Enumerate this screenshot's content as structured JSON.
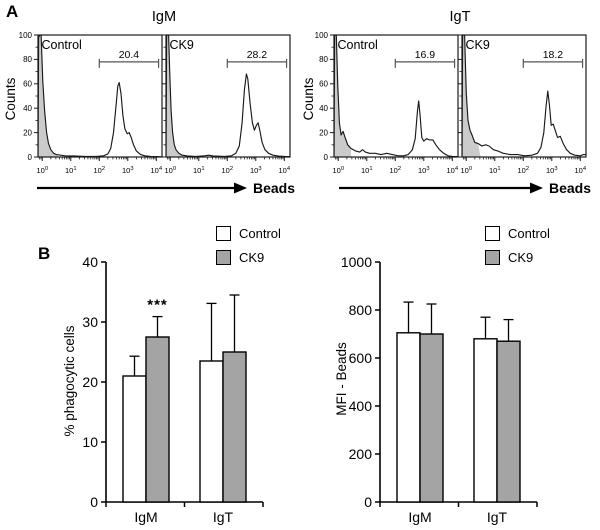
{
  "figure": {
    "panel_a_label": "A",
    "panel_b_label": "B"
  },
  "panel_a": {
    "group_titles": [
      "IgM",
      "IgT"
    ],
    "y_axis_label": "Counts",
    "x_arrow_label": "Beads"
  },
  "colors": {
    "control_fill": "#FFFFFF",
    "ck9_fill": "#A4A4A4",
    "histogram_shade": "#CBCBCB",
    "line": "#1a1a1a",
    "gate_line": "#555555"
  },
  "chart_data": [
    {
      "type": "area",
      "subtype": "flow-cytometry-histogram",
      "panel": "A",
      "group": "IgM",
      "sample": "Control",
      "xlabel": "Beads",
      "ylabel": "Counts",
      "x_scale": "log10",
      "x_range_log10": [
        -0.15,
        4.2
      ],
      "ylim": [
        0,
        100
      ],
      "y_ticks": [
        0,
        20,
        40,
        60,
        80,
        100
      ],
      "x_tick_exponents": [
        0,
        1,
        2,
        3,
        4
      ],
      "gate": {
        "label": "20.4",
        "from_log10": 2.0,
        "to_log10": 4.08,
        "counts_level": 78
      },
      "shaded_region_to_log10": 0.6,
      "points_log10x_counts": [
        [
          -0.15,
          0
        ],
        [
          -0.13,
          98
        ],
        [
          -0.08,
          100
        ],
        [
          -0.04,
          100
        ],
        [
          0.02,
          62
        ],
        [
          0.08,
          38
        ],
        [
          0.15,
          20
        ],
        [
          0.22,
          11
        ],
        [
          0.3,
          6
        ],
        [
          0.4,
          3
        ],
        [
          0.5,
          2
        ],
        [
          0.65,
          1.5
        ],
        [
          0.8,
          1
        ],
        [
          1.1,
          0.8
        ],
        [
          1.5,
          0.5
        ],
        [
          1.9,
          0.5
        ],
        [
          2.15,
          1
        ],
        [
          2.3,
          2.5
        ],
        [
          2.4,
          7
        ],
        [
          2.5,
          20
        ],
        [
          2.58,
          40
        ],
        [
          2.65,
          58
        ],
        [
          2.7,
          61
        ],
        [
          2.76,
          52
        ],
        [
          2.83,
          34
        ],
        [
          2.9,
          23
        ],
        [
          2.98,
          19
        ],
        [
          3.05,
          20
        ],
        [
          3.12,
          16
        ],
        [
          3.2,
          10
        ],
        [
          3.3,
          5
        ],
        [
          3.45,
          2
        ],
        [
          3.6,
          1
        ],
        [
          3.8,
          0.5
        ],
        [
          4.0,
          0.3
        ],
        [
          4.2,
          0.2
        ]
      ]
    },
    {
      "type": "area",
      "subtype": "flow-cytometry-histogram",
      "panel": "A",
      "group": "IgM",
      "sample": "CK9",
      "xlabel": "Beads",
      "ylabel": "Counts",
      "x_scale": "log10",
      "x_range_log10": [
        -0.15,
        4.2
      ],
      "ylim": [
        0,
        100
      ],
      "y_ticks": [
        0,
        20,
        40,
        60,
        80,
        100
      ],
      "x_tick_exponents": [
        0,
        1,
        2,
        3,
        4
      ],
      "gate": {
        "label": "28.2",
        "from_log10": 2.0,
        "to_log10": 4.08,
        "counts_level": 78
      },
      "shaded_region_to_log10": 0.45,
      "points_log10x_counts": [
        [
          -0.15,
          0
        ],
        [
          -0.13,
          100
        ],
        [
          -0.06,
          100
        ],
        [
          -0.02,
          70
        ],
        [
          0.03,
          38
        ],
        [
          0.08,
          20
        ],
        [
          0.14,
          10
        ],
        [
          0.2,
          6
        ],
        [
          0.3,
          3
        ],
        [
          0.42,
          1.5
        ],
        [
          0.6,
          0.8
        ],
        [
          0.9,
          0.5
        ],
        [
          1.2,
          1
        ],
        [
          1.35,
          1.5
        ],
        [
          1.5,
          0.8
        ],
        [
          1.9,
          0.5
        ],
        [
          2.15,
          1
        ],
        [
          2.3,
          3
        ],
        [
          2.42,
          9
        ],
        [
          2.52,
          28
        ],
        [
          2.6,
          55
        ],
        [
          2.67,
          68
        ],
        [
          2.72,
          64
        ],
        [
          2.8,
          44
        ],
        [
          2.88,
          28
        ],
        [
          2.95,
          22
        ],
        [
          3.02,
          26
        ],
        [
          3.08,
          28
        ],
        [
          3.14,
          22
        ],
        [
          3.22,
          12
        ],
        [
          3.32,
          6
        ],
        [
          3.45,
          3
        ],
        [
          3.6,
          1.5
        ],
        [
          3.8,
          0.7
        ],
        [
          4.0,
          0.4
        ],
        [
          4.2,
          0.3
        ]
      ]
    },
    {
      "type": "area",
      "subtype": "flow-cytometry-histogram",
      "panel": "A",
      "group": "IgT",
      "sample": "Control",
      "xlabel": "Beads",
      "ylabel": "Counts",
      "x_scale": "log10",
      "x_range_log10": [
        -0.15,
        4.2
      ],
      "ylim": [
        0,
        100
      ],
      "y_ticks": [
        0,
        20,
        40,
        60,
        80,
        100
      ],
      "x_tick_exponents": [
        0,
        1,
        2,
        3,
        4
      ],
      "gate": {
        "label": "16.9",
        "from_log10": 2.0,
        "to_log10": 4.08,
        "counts_level": 78
      },
      "shaded_region_to_log10": 0.45,
      "points_log10x_counts": [
        [
          -0.15,
          0
        ],
        [
          -0.13,
          100
        ],
        [
          -0.07,
          100
        ],
        [
          -0.02,
          60
        ],
        [
          0.04,
          28
        ],
        [
          0.1,
          18
        ],
        [
          0.17,
          21
        ],
        [
          0.24,
          16
        ],
        [
          0.33,
          10
        ],
        [
          0.45,
          7
        ],
        [
          0.6,
          5
        ],
        [
          0.75,
          4
        ],
        [
          0.85,
          6
        ],
        [
          0.95,
          4
        ],
        [
          1.1,
          3
        ],
        [
          1.3,
          3
        ],
        [
          1.5,
          2
        ],
        [
          1.7,
          3
        ],
        [
          1.9,
          2
        ],
        [
          2.1,
          1
        ],
        [
          2.3,
          1
        ],
        [
          2.45,
          2
        ],
        [
          2.6,
          6
        ],
        [
          2.7,
          15
        ],
        [
          2.78,
          38
        ],
        [
          2.82,
          46
        ],
        [
          2.87,
          34
        ],
        [
          2.93,
          16
        ],
        [
          3.0,
          13
        ],
        [
          3.1,
          15
        ],
        [
          3.2,
          14
        ],
        [
          3.32,
          14
        ],
        [
          3.42,
          10
        ],
        [
          3.55,
          6
        ],
        [
          3.7,
          3
        ],
        [
          3.85,
          1
        ],
        [
          4.0,
          0.5
        ],
        [
          4.2,
          0.3
        ]
      ]
    },
    {
      "type": "area",
      "subtype": "flow-cytometry-histogram",
      "panel": "A",
      "group": "IgT",
      "sample": "CK9",
      "xlabel": "Beads",
      "ylabel": "Counts",
      "x_scale": "log10",
      "x_range_log10": [
        -0.15,
        4.2
      ],
      "ylim": [
        0,
        100
      ],
      "y_ticks": [
        0,
        20,
        40,
        60,
        80,
        100
      ],
      "x_tick_exponents": [
        0,
        1,
        2,
        3,
        4
      ],
      "gate": {
        "label": "18.2",
        "from_log10": 2.0,
        "to_log10": 4.08,
        "counts_level": 78
      },
      "shaded_region_to_log10": 0.5,
      "points_log10x_counts": [
        [
          -0.15,
          0
        ],
        [
          -0.13,
          100
        ],
        [
          -0.06,
          100
        ],
        [
          0.0,
          52
        ],
        [
          0.06,
          30
        ],
        [
          0.13,
          22
        ],
        [
          0.2,
          18
        ],
        [
          0.3,
          12
        ],
        [
          0.42,
          11
        ],
        [
          0.55,
          9
        ],
        [
          0.68,
          10
        ],
        [
          0.8,
          9
        ],
        [
          0.95,
          6
        ],
        [
          1.1,
          5
        ],
        [
          1.3,
          3
        ],
        [
          1.55,
          2
        ],
        [
          1.8,
          2
        ],
        [
          2.05,
          1
        ],
        [
          2.3,
          1.5
        ],
        [
          2.5,
          3
        ],
        [
          2.62,
          8
        ],
        [
          2.72,
          20
        ],
        [
          2.8,
          42
        ],
        [
          2.86,
          54
        ],
        [
          2.92,
          42
        ],
        [
          2.98,
          26
        ],
        [
          3.05,
          27
        ],
        [
          3.12,
          22
        ],
        [
          3.2,
          16
        ],
        [
          3.3,
          17
        ],
        [
          3.4,
          11
        ],
        [
          3.52,
          6
        ],
        [
          3.65,
          3
        ],
        [
          3.8,
          1.5
        ],
        [
          4.0,
          1
        ],
        [
          4.1,
          2
        ],
        [
          4.2,
          2
        ]
      ]
    },
    {
      "type": "bar",
      "panel": "B",
      "ylabel": "% phagocytic cells",
      "ylim": [
        0,
        40
      ],
      "y_ticks": [
        0,
        10,
        20,
        30,
        40
      ],
      "categories": [
        "IgM",
        "IgT"
      ],
      "series": [
        {
          "name": "Control",
          "fill": "#FFFFFF",
          "values": [
            21,
            23.5
          ],
          "errors_up": [
            3.3,
            9.6
          ]
        },
        {
          "name": "CK9",
          "fill": "#A4A4A4",
          "values": [
            27.5,
            25
          ],
          "errors_up": [
            3.4,
            9.5
          ]
        }
      ],
      "annotations": [
        {
          "text": "***",
          "category": "IgM",
          "series": "CK9"
        }
      ],
      "legend_position": "top-right",
      "grid": false
    },
    {
      "type": "bar",
      "panel": "B",
      "ylabel": "MFI - Beads",
      "ylim": [
        0,
        1000
      ],
      "y_ticks": [
        0,
        200,
        400,
        600,
        800,
        1000
      ],
      "categories": [
        "IgM",
        "IgT"
      ],
      "series": [
        {
          "name": "Control",
          "fill": "#FFFFFF",
          "values": [
            705,
            680
          ],
          "errors_up": [
            128,
            90
          ]
        },
        {
          "name": "CK9",
          "fill": "#A4A4A4",
          "values": [
            700,
            670
          ],
          "errors_up": [
            125,
            90
          ]
        }
      ],
      "annotations": [],
      "legend_position": "top-right",
      "grid": false
    }
  ]
}
